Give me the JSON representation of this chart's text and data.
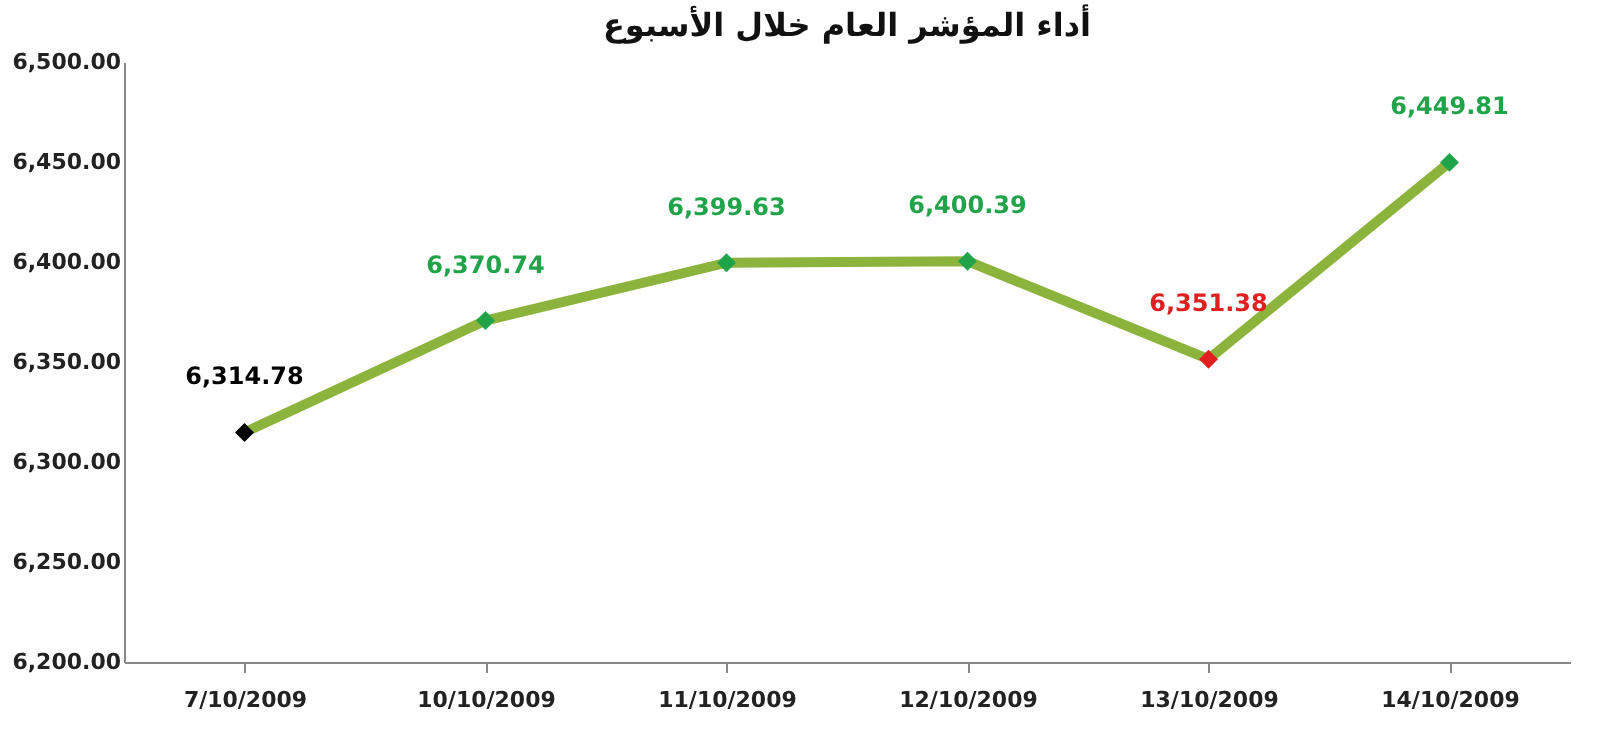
{
  "chart_data": {
    "type": "line",
    "title": "أداء المؤشر العام خلال الأسبوع",
    "categories": [
      "7/10/2009",
      "10/10/2009",
      "11/10/2009",
      "12/10/2009",
      "13/10/2009",
      "14/10/2009"
    ],
    "series": [
      {
        "color": "#8cb43c",
        "values": [
          6314.78,
          6370.74,
          6399.63,
          6400.39,
          6351.38,
          6449.81
        ],
        "colors": [
          "#000000",
          "#21a34a",
          "#21a34a",
          "#21a34a",
          "#e02020",
          "#21a34a"
        ],
        "value_labels": [
          "6,314.78",
          "6,370.74",
          "6,399.63",
          "6,400.39",
          "6,351.38",
          "6,449.81"
        ]
      }
    ],
    "ylim": [
      6200,
      6500
    ],
    "yticks": [
      {
        "value": 6200,
        "label": "6,200.00"
      },
      {
        "value": 6250,
        "label": "6,250.00"
      },
      {
        "value": 6300,
        "label": "6,300.00"
      },
      {
        "value": 6350,
        "label": "6,350.00"
      },
      {
        "value": 6400,
        "label": "6,400.00"
      },
      {
        "value": 6450,
        "label": "6,450.00"
      },
      {
        "value": 6500,
        "label": "6,500.00"
      }
    ],
    "grid": false,
    "marker": "diamond",
    "line_style": "solid"
  }
}
